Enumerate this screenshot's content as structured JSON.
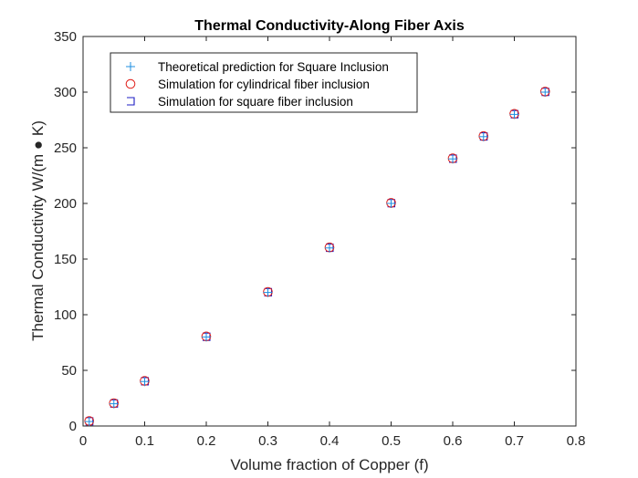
{
  "chart_data": {
    "type": "scatter",
    "title": "Thermal Conductivity-Along Fiber Axis",
    "xlabel": "Volume fraction of Copper (f)",
    "ylabel": "Thermal Conductivity W/(m ● K)",
    "xlim": [
      0,
      0.8
    ],
    "ylim": [
      0,
      350
    ],
    "xticks": [
      "0",
      "0.1",
      "0.2",
      "0.3",
      "0.4",
      "0.5",
      "0.6",
      "0.7",
      "0.8"
    ],
    "yticks": [
      "0",
      "50",
      "100",
      "150",
      "200",
      "250",
      "300",
      "350"
    ],
    "grid": false,
    "legend_position": "top-left",
    "series": [
      {
        "name": "Theoretical prediction for Square Inclusion",
        "marker": "plus",
        "color": "#1f8fe0",
        "x": [
          0.01,
          0.05,
          0.1,
          0.2,
          0.3,
          0.4,
          0.5,
          0.6,
          0.65,
          0.7,
          0.75
        ],
        "y": [
          4,
          20,
          40,
          80,
          120,
          160,
          200,
          240,
          260,
          280,
          300
        ]
      },
      {
        "name": "Simulation for cylindrical fiber inclusion",
        "marker": "circle",
        "color": "#e0201b",
        "x": [
          0.01,
          0.05,
          0.1,
          0.2,
          0.3,
          0.4,
          0.5,
          0.6,
          0.65,
          0.7,
          0.75
        ],
        "y": [
          4.5,
          20.5,
          40.5,
          80.5,
          120.5,
          160.5,
          200.5,
          240.5,
          260.5,
          280.5,
          300.5
        ]
      },
      {
        "name": "Simulation for square fiber inclusion",
        "marker": "square-bracket",
        "color": "#1c1cc4",
        "x": [
          0.01,
          0.05,
          0.1,
          0.2,
          0.3,
          0.4,
          0.5,
          0.6,
          0.65,
          0.7,
          0.75
        ],
        "y": [
          4.2,
          20.2,
          40.2,
          80.2,
          120.2,
          160.2,
          200.2,
          240.2,
          260.2,
          280.2,
          300.2
        ]
      }
    ]
  }
}
